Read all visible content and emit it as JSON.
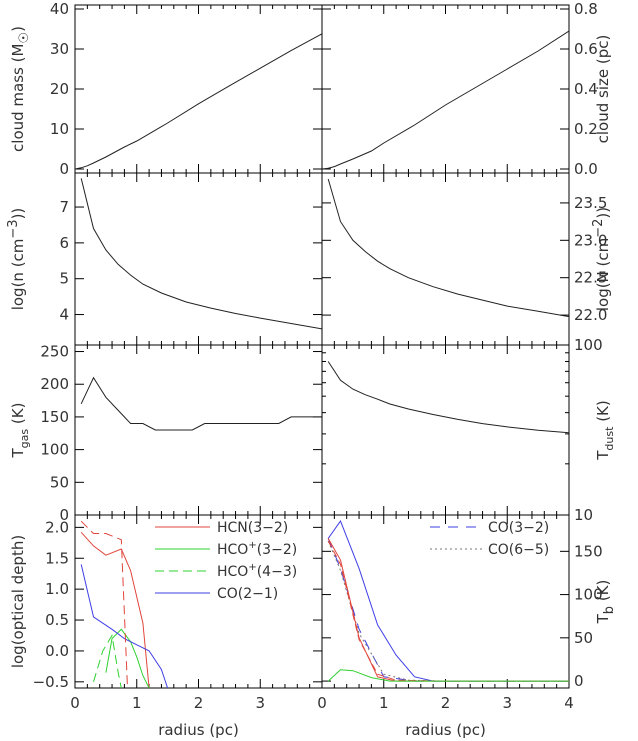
{
  "colors": {
    "black": "#222222",
    "red": "#e0463c",
    "green": "#2fd12f",
    "blue": "#3f3fe6",
    "gray": "#777777"
  },
  "x_axis": {
    "label": "radius (pc)",
    "range": [
      0,
      4
    ],
    "ticks": [
      "0",
      "1",
      "2",
      "3",
      "4"
    ]
  },
  "chart_data": [
    {
      "id": "mass",
      "type": "line",
      "ylabel_parts": [
        "cloud mass (M",
        "☉",
        ")"
      ],
      "ylim": [
        -1,
        41
      ],
      "yticks": [
        0,
        10,
        20,
        30,
        40
      ],
      "ytick_labels": [
        "0",
        "10",
        "20",
        "30",
        "40"
      ],
      "yaxis_side": "left",
      "series": [
        {
          "color": "black",
          "dash": "",
          "x": [
            0,
            0.1,
            0.2,
            0.3,
            0.5,
            0.8,
            1,
            1.5,
            2,
            2.5,
            3,
            3.5,
            4
          ],
          "y": [
            0,
            0.3,
            0.8,
            1.5,
            3,
            5.5,
            7,
            11.5,
            16.3,
            20.8,
            25.2,
            29.6,
            33.8
          ]
        }
      ]
    },
    {
      "id": "size",
      "type": "line",
      "ylabel": "cloud size (pc)",
      "ylim": [
        -0.02,
        0.82
      ],
      "yticks": [
        0,
        0.2,
        0.4,
        0.6,
        0.8
      ],
      "ytick_labels": [
        "0.0",
        "0.2",
        "0.4",
        "0.6",
        "0.8"
      ],
      "yaxis_side": "right",
      "series": [
        {
          "color": "black",
          "dash": "",
          "x": [
            0,
            0.1,
            0.2,
            0.3,
            0.5,
            0.8,
            1,
            1.5,
            2,
            2.5,
            3,
            3.5,
            4
          ],
          "y": [
            0,
            0.004,
            0.012,
            0.025,
            0.05,
            0.09,
            0.13,
            0.22,
            0.32,
            0.41,
            0.5,
            0.59,
            0.69
          ]
        }
      ]
    },
    {
      "id": "density",
      "type": "line",
      "ylabel_parts": [
        "log(n (cm",
        "−3",
        "))"
      ],
      "ylim": [
        3.15,
        7.95
      ],
      "yticks": [
        4,
        5,
        6,
        7
      ],
      "ytick_labels": [
        "4",
        "5",
        "6",
        "7"
      ],
      "yaxis_side": "left",
      "series": [
        {
          "color": "black",
          "dash": "",
          "x": [
            0.1,
            0.3,
            0.5,
            0.7,
            0.9,
            1.1,
            1.4,
            1.8,
            2.2,
            2.6,
            3,
            3.5,
            4
          ],
          "y": [
            7.8,
            6.4,
            5.8,
            5.4,
            5.1,
            4.85,
            4.6,
            4.35,
            4.18,
            4.03,
            3.9,
            3.75,
            3.6
          ]
        }
      ]
    },
    {
      "id": "column",
      "type": "line",
      "ylabel_parts": [
        "log(N (cm",
        "−2",
        "))"
      ],
      "ylim": [
        21.6,
        23.9
      ],
      "yticks": [
        22.0,
        22.5,
        23.0,
        23.5
      ],
      "ytick_labels": [
        "22.0",
        "22.5",
        "23.0",
        "23.5"
      ],
      "yaxis_side": "right",
      "series": [
        {
          "color": "black",
          "dash": "",
          "x": [
            0.1,
            0.3,
            0.5,
            0.7,
            0.9,
            1.1,
            1.4,
            1.8,
            2.2,
            2.6,
            3,
            3.5,
            4
          ],
          "y": [
            23.82,
            23.25,
            23.0,
            22.85,
            22.72,
            22.62,
            22.5,
            22.38,
            22.28,
            22.2,
            22.12,
            22.05,
            21.98
          ]
        }
      ]
    },
    {
      "id": "tgas",
      "type": "line",
      "ylabel_parts": [
        "T",
        "gas",
        " (K)"
      ],
      "ylim": [
        0,
        260
      ],
      "yticks": [
        0,
        50,
        100,
        150,
        200,
        250
      ],
      "ytick_labels": [
        "0",
        "50",
        "100",
        "150",
        "200",
        "250"
      ],
      "yaxis_side": "left",
      "series": [
        {
          "color": "black",
          "dash": "",
          "x": [
            0.1,
            0.3,
            0.5,
            0.7,
            0.9,
            1.1,
            1.3,
            1.5,
            1.7,
            1.9,
            2.1,
            2.4,
            2.7,
            3,
            3.3,
            3.5,
            3.7,
            4
          ],
          "y": [
            170,
            210,
            180,
            160,
            140,
            140,
            130,
            130,
            130,
            130,
            140,
            140,
            140,
            140,
            140,
            150,
            150,
            150
          ]
        }
      ]
    },
    {
      "id": "tdust",
      "type": "line",
      "ylabel_parts": [
        "T",
        "dust",
        " (K)"
      ],
      "ylim": [
        10,
        100
      ],
      "yscale": "log",
      "yticks": [
        10,
        100
      ],
      "ytick_labels": [
        "10",
        "100"
      ],
      "yaxis_side": "right",
      "series": [
        {
          "color": "black",
          "dash": "",
          "x": [
            0.1,
            0.3,
            0.5,
            0.7,
            0.9,
            1.1,
            1.4,
            1.8,
            2.2,
            2.6,
            3,
            3.5,
            4
          ],
          "y": [
            80,
            62,
            55,
            51,
            48,
            45,
            42,
            39,
            36.5,
            34.5,
            33,
            31.5,
            30.5
          ]
        }
      ]
    },
    {
      "id": "optdepth",
      "type": "line",
      "ylabel": "log(optical depth)",
      "ylim": [
        -0.6,
        2.2
      ],
      "yticks": [
        -0.5,
        0,
        0.5,
        1,
        1.5,
        2
      ],
      "ytick_labels": [
        "−0.5",
        "0.0",
        "0.5",
        "1.0",
        "1.5",
        "2.0"
      ],
      "yaxis_side": "left",
      "legend_placement": "top-right",
      "series": [
        {
          "name": "HCN(3−2)",
          "label_parts": [
            "HCN(3−2)"
          ],
          "color": "red",
          "dash": "",
          "x": [
            0.1,
            0.3,
            0.5,
            0.75,
            0.9,
            1.1,
            1.2
          ],
          "y": [
            1.92,
            1.7,
            1.55,
            1.65,
            1.3,
            0.45,
            -0.6
          ]
        },
        {
          "name": "HCO+(3−2)",
          "label_parts": [
            "HCO",
            "+",
            "(3−2)"
          ],
          "color": "green",
          "dash": "",
          "x": [
            0.5,
            0.6,
            0.75,
            0.9,
            1.0,
            1.1,
            1.2
          ],
          "y": [
            -0.35,
            0.2,
            0.35,
            0.15,
            -0.1,
            -0.4,
            -0.6
          ]
        },
        {
          "name": "HCO+(4−3)",
          "label_parts": [
            "HCO",
            "+",
            "(4−3)"
          ],
          "color": "green",
          "dash": "9,5",
          "x": [
            0.3,
            0.45,
            0.6,
            0.7,
            0.75
          ],
          "y": [
            -0.5,
            0.0,
            0.25,
            -0.35,
            -0.6
          ]
        },
        {
          "name": "CO(2−1)",
          "label_parts": [
            "CO(2−1)"
          ],
          "color": "blue",
          "dash": "",
          "x": [
            0.1,
            0.3,
            0.6,
            0.8,
            1.0,
            1.2,
            1.4,
            1.5
          ],
          "y": [
            1.4,
            0.55,
            0.35,
            0.2,
            0.1,
            0.0,
            -0.3,
            -0.6
          ]
        },
        {
          "name": "HCN dashed",
          "color": "red",
          "dash": "9,5",
          "x": [
            0.1,
            0.3,
            0.5,
            0.75,
            0.85
          ],
          "y": [
            2.1,
            1.9,
            1.9,
            1.8,
            -0.6
          ]
        }
      ]
    },
    {
      "id": "tb",
      "type": "line",
      "ylabel_parts": [
        "T",
        "b",
        " (K)"
      ],
      "ylim": [
        -8,
        192
      ],
      "yticks": [
        0,
        50,
        100,
        150
      ],
      "ytick_labels": [
        "0",
        "50",
        "100",
        "150"
      ],
      "yaxis_side": "right",
      "legend_placement": "top-right",
      "series": [
        {
          "name": "CO(3−2)",
          "label_parts": [
            "CO(3−2)"
          ],
          "color": "blue",
          "dash": "10,8",
          "x": [
            0.1,
            0.3,
            0.6,
            1.0,
            1.5,
            2,
            4
          ],
          "y": [
            165,
            130,
            60,
            5,
            0,
            0,
            0
          ]
        },
        {
          "name": "CO(6−5)",
          "label_parts": [
            "CO(6−5)"
          ],
          "color": "gray",
          "dash": "2,3",
          "x": [
            0.1,
            0.3,
            0.6,
            1.0,
            1.4,
            2,
            4
          ],
          "y": [
            162,
            128,
            55,
            8,
            1,
            0,
            0
          ]
        },
        {
          "name": "blue solid",
          "color": "blue",
          "dash": "",
          "x": [
            0.1,
            0.3,
            0.6,
            0.9,
            1.2,
            1.5,
            1.8,
            4
          ],
          "y": [
            165,
            185,
            130,
            65,
            30,
            5,
            0,
            0
          ]
        },
        {
          "name": "red solid",
          "color": "red",
          "dash": "",
          "x": [
            0.1,
            0.3,
            0.6,
            0.9,
            1.2,
            2,
            4
          ],
          "y": [
            165,
            140,
            50,
            5,
            0,
            0,
            0
          ]
        },
        {
          "name": "red dashed",
          "color": "red",
          "dash": "7,4",
          "x": [
            0.1,
            0.3,
            0.6,
            0.9,
            1.2,
            2,
            4
          ],
          "y": [
            162,
            135,
            48,
            8,
            1,
            0,
            0
          ]
        },
        {
          "name": "green solid",
          "color": "green",
          "dash": "",
          "x": [
            0.1,
            0.3,
            0.5,
            0.8,
            1.1,
            1.5,
            4
          ],
          "y": [
            0,
            13,
            12,
            4,
            0,
            0,
            0
          ]
        }
      ]
    }
  ]
}
